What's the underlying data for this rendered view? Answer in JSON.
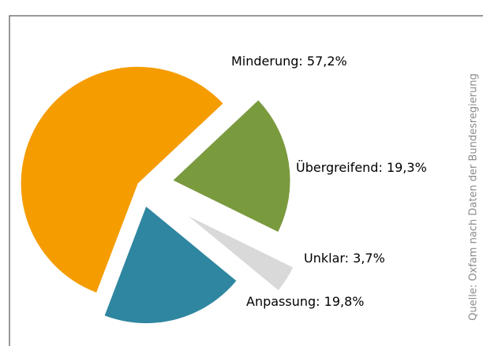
{
  "chart_data": {
    "type": "pie",
    "categories": [
      "Minderung",
      "Übergreifend",
      "Unklar",
      "Anpassung"
    ],
    "values": [
      57.2,
      19.3,
      3.7,
      19.8
    ],
    "value_labels": [
      "57,2%",
      "19,3%",
      "3,7%",
      "19,8%"
    ],
    "colors": [
      "#f59c00",
      "#7a9a3e",
      "#d9d9d9",
      "#2f86a0"
    ],
    "source": "Quelle: Oxfam nach Daten der Bundesregierung"
  }
}
